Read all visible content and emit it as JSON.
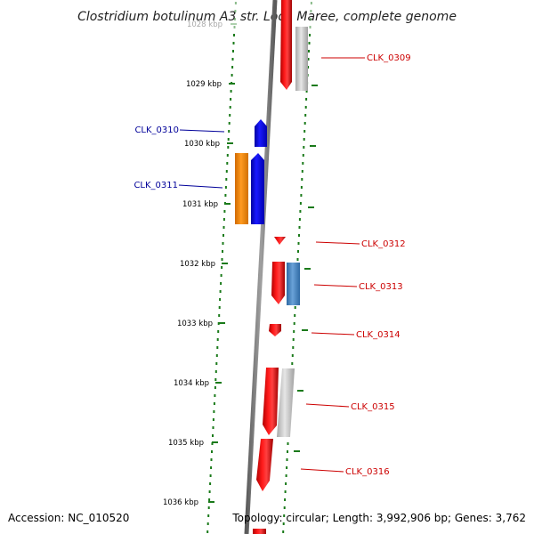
{
  "title": "Clostridium botulinum A3 str. Loch Maree, complete genome",
  "footer": {
    "accession": "Accession: NC_010520",
    "summary": "Topology: circular; Length: 3,992,906 bp; Genes: 3,762"
  },
  "ticks": [
    {
      "label": "1028 kbp",
      "faded": true
    },
    {
      "label": "1029 kbp"
    },
    {
      "label": "1030 kbp"
    },
    {
      "label": "1031 kbp"
    },
    {
      "label": "1032 kbp"
    },
    {
      "label": "1033 kbp"
    },
    {
      "label": "1034 kbp"
    },
    {
      "label": "1035 kbp"
    },
    {
      "label": "1036 kbp"
    }
  ],
  "gene_labels": [
    {
      "id": "CLK_0309",
      "color": "#cc0000",
      "side": "right"
    },
    {
      "id": "CLK_0310",
      "color": "#000099",
      "side": "left"
    },
    {
      "id": "CLK_0311",
      "color": "#000099",
      "side": "left"
    },
    {
      "id": "CLK_0312",
      "color": "#cc0000",
      "side": "right"
    },
    {
      "id": "CLK_0313",
      "color": "#cc0000",
      "side": "right"
    },
    {
      "id": "CLK_0314",
      "color": "#cc0000",
      "side": "right"
    },
    {
      "id": "CLK_0315",
      "color": "#cc0000",
      "side": "right"
    },
    {
      "id": "CLK_0316",
      "color": "#cc0000",
      "side": "right"
    }
  ],
  "colors": {
    "backbone": "#7a7a7a",
    "ruler": "#1a7a1a",
    "cds_forward": "#ff0000",
    "cds_reverse": "#0000ee",
    "rna_gray": "#c8c8c8",
    "orange": "#ff8800",
    "steelblue": "#4a86c0"
  }
}
